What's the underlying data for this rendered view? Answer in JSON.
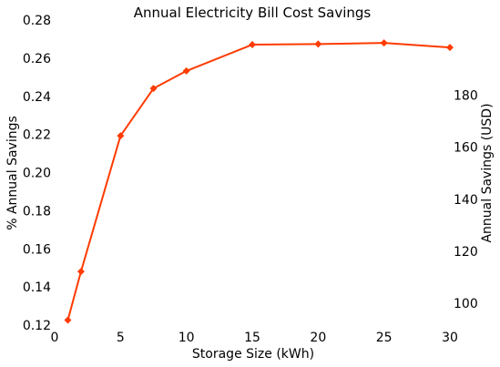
{
  "chart_data": {
    "type": "line",
    "title": "Annual Electricity Bill Cost Savings",
    "xlabel": "Storage Size (kWh)",
    "ylabel": "% Annual Savings",
    "y2label": "Annual Savings (USD)",
    "xlim": [
      0,
      30
    ],
    "ylim": [
      0.12,
      0.28
    ],
    "y2lim": [
      91.6,
      208.9
    ],
    "grid": false,
    "x_ticks": [
      0,
      5,
      10,
      15,
      20,
      25,
      30
    ],
    "y_ticks": [
      0.12,
      0.14,
      0.16,
      0.18,
      0.2,
      0.22,
      0.24,
      0.26,
      0.28
    ],
    "y2_ticks": [
      100,
      120,
      140,
      160,
      180
    ],
    "series": [
      {
        "color": "#ff3b00",
        "x": [
          1,
          2,
          5,
          7.5,
          10,
          15,
          20,
          25,
          30
        ],
        "y": [
          0.1226,
          0.1481,
          0.2193,
          0.2441,
          0.2533,
          0.2671,
          0.2674,
          0.268,
          0.2656
        ]
      }
    ]
  }
}
